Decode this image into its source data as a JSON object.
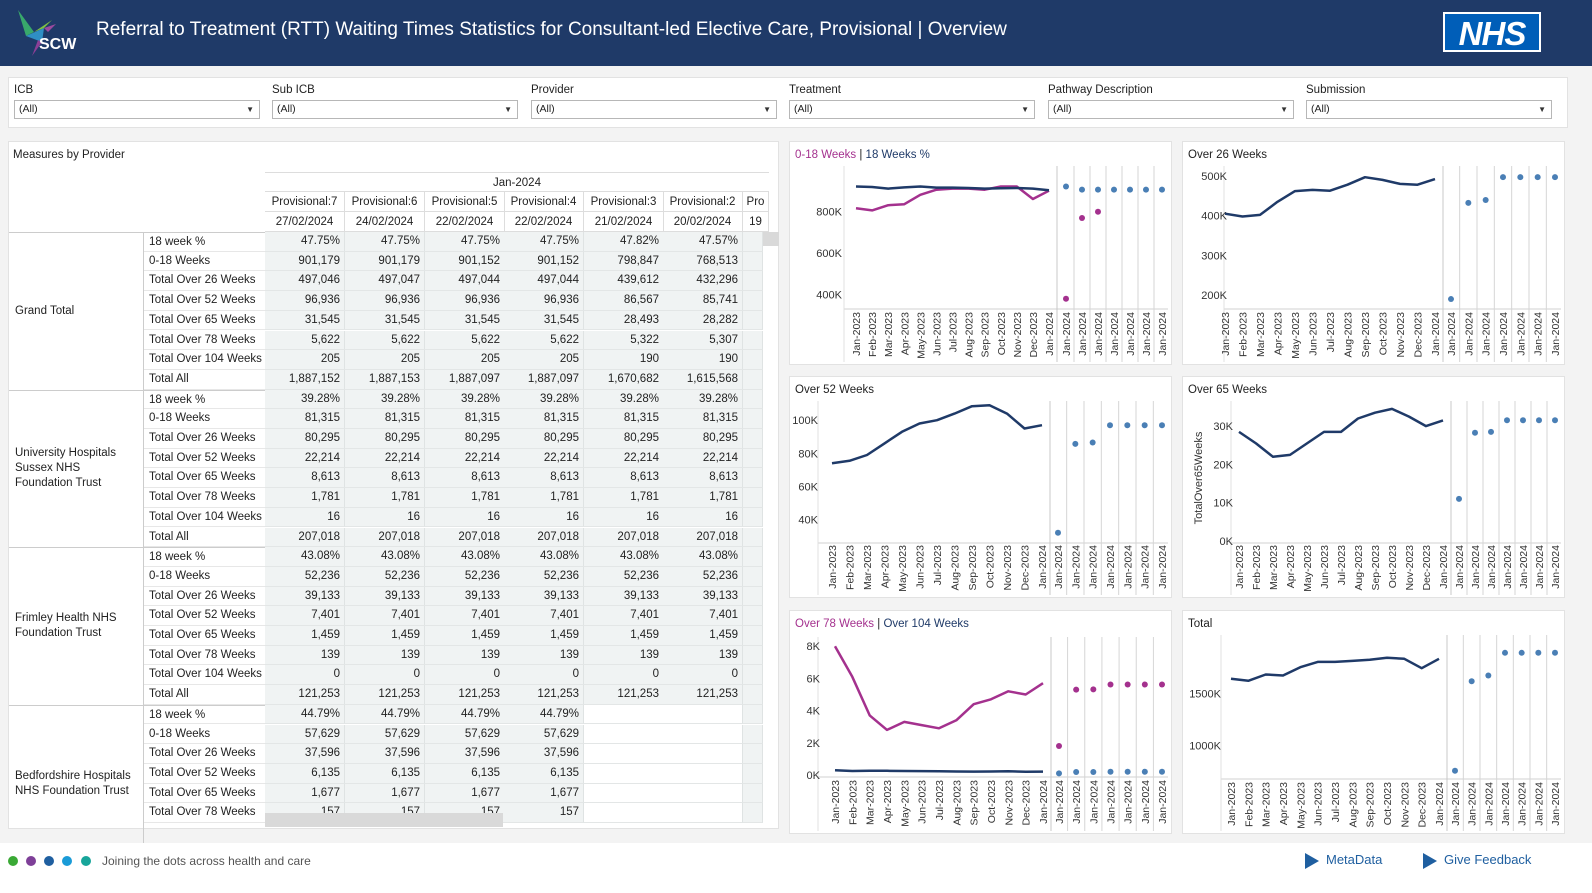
{
  "header": {
    "logo_text": "SCW",
    "title": "Referral to Treatment (RTT) Waiting Times Statistics for Consultant-led Elective Care, Provisional | Overview",
    "nhs_logo": "NHS"
  },
  "filters": [
    {
      "label": "ICB",
      "value": "(All)"
    },
    {
      "label": "Sub ICB",
      "value": "(All)"
    },
    {
      "label": "Provider",
      "value": "(All)"
    },
    {
      "label": "Treatment",
      "value": "(All)"
    },
    {
      "label": "Pathway Description",
      "value": "(All)"
    },
    {
      "label": "Submission",
      "value": "(All)"
    }
  ],
  "table": {
    "title": "Measures by Provider",
    "month": "Jan-2024",
    "columns": [
      {
        "name": "Provisional:7",
        "date": "27/02/2024"
      },
      {
        "name": "Provisional:6",
        "date": "24/02/2024"
      },
      {
        "name": "Provisional:5",
        "date": "22/02/2024"
      },
      {
        "name": "Provisional:4",
        "date": "22/02/2024"
      },
      {
        "name": "Provisional:3",
        "date": "21/02/2024"
      },
      {
        "name": "Provisional:2",
        "date": "20/02/2024"
      },
      {
        "name": "Pro",
        "date": "19"
      }
    ],
    "groups": [
      {
        "name": "Grand Total",
        "rows": [
          {
            "measure": "18 week %",
            "values": [
              "47.75%",
              "47.75%",
              "47.75%",
              "47.75%",
              "47.82%",
              "47.57%"
            ]
          },
          {
            "measure": "0-18 Weeks",
            "values": [
              "901,179",
              "901,179",
              "901,152",
              "901,152",
              "798,847",
              "768,513"
            ]
          },
          {
            "measure": "Total Over 26 Weeks",
            "values": [
              "497,046",
              "497,047",
              "497,044",
              "497,044",
              "439,612",
              "432,296"
            ]
          },
          {
            "measure": "Total Over 52 Weeks",
            "values": [
              "96,936",
              "96,936",
              "96,936",
              "96,936",
              "86,567",
              "85,741"
            ]
          },
          {
            "measure": "Total Over 65 Weeks",
            "values": [
              "31,545",
              "31,545",
              "31,545",
              "31,545",
              "28,493",
              "28,282"
            ]
          },
          {
            "measure": "Total Over 78 Weeks",
            "values": [
              "5,622",
              "5,622",
              "5,622",
              "5,622",
              "5,322",
              "5,307"
            ]
          },
          {
            "measure": "Total Over 104 Weeks",
            "values": [
              "205",
              "205",
              "205",
              "205",
              "190",
              "190"
            ]
          },
          {
            "measure": "Total All",
            "values": [
              "1,887,152",
              "1,887,153",
              "1,887,097",
              "1,887,097",
              "1,670,682",
              "1,615,568"
            ]
          }
        ]
      },
      {
        "name": "University Hospitals Sussex NHS Foundation Trust",
        "rows": [
          {
            "measure": "18 week %",
            "values": [
              "39.28%",
              "39.28%",
              "39.28%",
              "39.28%",
              "39.28%",
              "39.28%"
            ]
          },
          {
            "measure": "0-18 Weeks",
            "values": [
              "81,315",
              "81,315",
              "81,315",
              "81,315",
              "81,315",
              "81,315"
            ]
          },
          {
            "measure": "Total Over 26 Weeks",
            "values": [
              "80,295",
              "80,295",
              "80,295",
              "80,295",
              "80,295",
              "80,295"
            ]
          },
          {
            "measure": "Total Over 52 Weeks",
            "values": [
              "22,214",
              "22,214",
              "22,214",
              "22,214",
              "22,214",
              "22,214"
            ]
          },
          {
            "measure": "Total Over 65 Weeks",
            "values": [
              "8,613",
              "8,613",
              "8,613",
              "8,613",
              "8,613",
              "8,613"
            ]
          },
          {
            "measure": "Total Over 78 Weeks",
            "values": [
              "1,781",
              "1,781",
              "1,781",
              "1,781",
              "1,781",
              "1,781"
            ]
          },
          {
            "measure": "Total Over 104 Weeks",
            "values": [
              "16",
              "16",
              "16",
              "16",
              "16",
              "16"
            ]
          },
          {
            "measure": "Total All",
            "values": [
              "207,018",
              "207,018",
              "207,018",
              "207,018",
              "207,018",
              "207,018"
            ]
          }
        ]
      },
      {
        "name": "Frimley Health NHS Foundation Trust",
        "rows": [
          {
            "measure": "18 week %",
            "values": [
              "43.08%",
              "43.08%",
              "43.08%",
              "43.08%",
              "43.08%",
              "43.08%"
            ]
          },
          {
            "measure": "0-18 Weeks",
            "values": [
              "52,236",
              "52,236",
              "52,236",
              "52,236",
              "52,236",
              "52,236"
            ]
          },
          {
            "measure": "Total Over 26 Weeks",
            "values": [
              "39,133",
              "39,133",
              "39,133",
              "39,133",
              "39,133",
              "39,133"
            ]
          },
          {
            "measure": "Total Over 52 Weeks",
            "values": [
              "7,401",
              "7,401",
              "7,401",
              "7,401",
              "7,401",
              "7,401"
            ]
          },
          {
            "measure": "Total Over 65 Weeks",
            "values": [
              "1,459",
              "1,459",
              "1,459",
              "1,459",
              "1,459",
              "1,459"
            ]
          },
          {
            "measure": "Total Over 78 Weeks",
            "values": [
              "139",
              "139",
              "139",
              "139",
              "139",
              "139"
            ]
          },
          {
            "measure": "Total Over 104 Weeks",
            "values": [
              "0",
              "0",
              "0",
              "0",
              "0",
              "0"
            ]
          },
          {
            "measure": "Total All",
            "values": [
              "121,253",
              "121,253",
              "121,253",
              "121,253",
              "121,253",
              "121,253"
            ]
          }
        ]
      },
      {
        "name": "Bedfordshire Hospitals NHS Foundation Trust",
        "rows": [
          {
            "measure": "18 week %",
            "values": [
              "44.79%",
              "44.79%",
              "44.79%",
              "44.79%",
              "",
              ""
            ]
          },
          {
            "measure": "0-18 Weeks",
            "values": [
              "57,629",
              "57,629",
              "57,629",
              "57,629",
              "",
              ""
            ]
          },
          {
            "measure": "Total Over 26 Weeks",
            "values": [
              "37,596",
              "37,596",
              "37,596",
              "37,596",
              "",
              ""
            ]
          },
          {
            "measure": "Total Over 52 Weeks",
            "values": [
              "6,135",
              "6,135",
              "6,135",
              "6,135",
              "",
              ""
            ]
          },
          {
            "measure": "Total Over 65 Weeks",
            "values": [
              "1,677",
              "1,677",
              "1,677",
              "1,677",
              "",
              ""
            ]
          },
          {
            "measure": "Total Over 78 Weeks",
            "values": [
              "157",
              "157",
              "157",
              "157",
              "",
              ""
            ]
          }
        ]
      }
    ]
  },
  "colors": {
    "navy": "#1f3a68",
    "purple": "#a4318e",
    "dot_blue": "#4a7fb5"
  },
  "chart_data": [
    {
      "type": "line",
      "title_parts": [
        "0-18 Weeks",
        "18 Weeks %"
      ],
      "x": [
        "Jan-2023",
        "Feb-2023",
        "Mar-2023",
        "Apr-2023",
        "May-2023",
        "Jun-2023",
        "Jul-2023",
        "Aug-2023",
        "Sep-2023",
        "Oct-2023",
        "Nov-2023",
        "Dec-2023",
        "Jan-2024"
      ],
      "ylim": [
        340000,
        990000
      ],
      "yticks": [
        400000,
        600000,
        800000
      ],
      "ytick_labels": [
        "400K",
        "600K",
        "800K"
      ],
      "series": [
        {
          "name": "0-18 Weeks",
          "color": "#a4318e",
          "values": [
            815000,
            805000,
            830000,
            835000,
            880000,
            905000,
            910000,
            910000,
            905000,
            920000,
            920000,
            860000,
            900000
          ]
        },
        {
          "name": "18 Weeks %",
          "color": "#1f3a68",
          "values": [
            920000,
            918000,
            910000,
            916000,
            920000,
            915000,
            915000,
            913000,
            910000,
            912000,
            913000,
            910000,
            902000
          ]
        }
      ],
      "provisional_x": [
        "Jan-2024",
        "Jan-2024",
        "Jan-2024",
        "Jan-2024",
        "Jan-2024",
        "Jan-2024",
        "Jan-2024"
      ],
      "provisional_series": [
        {
          "name": "0-18 Weeks",
          "color": "#a4318e",
          "values": [
            380000,
            768513,
            798847,
            null,
            null,
            null,
            null
          ]
        },
        {
          "name": "18 Weeks %",
          "color": "#4a7fb5",
          "values": [
            920000,
            905000,
            905000,
            905000,
            905000,
            905000,
            905000
          ]
        }
      ]
    },
    {
      "type": "line",
      "title_parts": [
        "Over 26 Weeks"
      ],
      "x": [
        "Jan-2023",
        "Feb-2023",
        "Mar-2023",
        "Apr-2023",
        "May-2023",
        "Jun-2023",
        "Jul-2023",
        "Aug-2023",
        "Sep-2023",
        "Oct-2023",
        "Nov-2023",
        "Dec-2023",
        "Jan-2024"
      ],
      "ylim": [
        170000,
        510000
      ],
      "yticks": [
        200000,
        300000,
        400000,
        500000
      ],
      "ytick_labels": [
        "200K",
        "300K",
        "400K",
        "500K"
      ],
      "series": [
        {
          "name": "",
          "color": "#1f3a68",
          "values": [
            405000,
            398000,
            402000,
            435000,
            462000,
            465000,
            463000,
            478000,
            497000,
            490000,
            480000,
            478000,
            492000
          ]
        }
      ],
      "provisional_x": [
        "Jan-2024",
        "Jan-2024",
        "Jan-2024",
        "Jan-2024",
        "Jan-2024",
        "Jan-2024",
        "Jan-2024"
      ],
      "provisional_series": [
        {
          "name": "",
          "color": "#4a7fb5",
          "values": [
            190000,
            432296,
            439612,
            497044,
            497044,
            497047,
            497046
          ]
        }
      ]
    },
    {
      "type": "line",
      "title_parts": [
        "Over 52 Weeks"
      ],
      "x": [
        "Jan-2023",
        "Feb-2023",
        "Mar-2023",
        "Apr-2023",
        "May-2023",
        "Jun-2023",
        "Jul-2023",
        "Aug-2023",
        "Sep-2023",
        "Oct-2023",
        "Nov-2023",
        "Dec-2023",
        "Jan-2024"
      ],
      "ylim": [
        27000,
        108000
      ],
      "yticks": [
        40000,
        60000,
        80000,
        100000
      ],
      "ytick_labels": [
        "40K",
        "60K",
        "80K",
        "100K"
      ],
      "series": [
        {
          "name": "",
          "color": "#1f3a68",
          "values": [
            74000,
            75500,
            79000,
            86000,
            93000,
            98000,
            100000,
            104000,
            108500,
            109000,
            104000,
            95000,
            97000
          ]
        }
      ],
      "provisional_x": [
        "Jan-2024",
        "Jan-2024",
        "Jan-2024",
        "Jan-2024",
        "Jan-2024",
        "Jan-2024",
        "Jan-2024"
      ],
      "provisional_series": [
        {
          "name": "",
          "color": "#4a7fb5",
          "values": [
            32000,
            85741,
            86567,
            96936,
            96936,
            96936,
            96936
          ]
        }
      ]
    },
    {
      "type": "line",
      "title_parts": [
        "Over 65 Weeks"
      ],
      "ylabel": "TotalOver65Weeks",
      "x": [
        "Jan-2023",
        "Feb-2023",
        "Mar-2023",
        "Apr-2023",
        "May-2023",
        "Jun-2023",
        "Jul-2023",
        "Aug-2023",
        "Sep-2023",
        "Oct-2023",
        "Nov-2023",
        "Dec-2023",
        "Jan-2024"
      ],
      "ylim": [
        0,
        35000
      ],
      "yticks": [
        0,
        10000,
        20000,
        30000
      ],
      "ytick_labels": [
        "0K",
        "10K",
        "20K",
        "30K"
      ],
      "series": [
        {
          "name": "",
          "color": "#1f3a68",
          "values": [
            28500,
            25500,
            22000,
            22500,
            25500,
            28500,
            28500,
            32000,
            33500,
            34500,
            32500,
            30000,
            31500
          ]
        }
      ],
      "provisional_x": [
        "Jan-2024",
        "Jan-2024",
        "Jan-2024",
        "Jan-2024",
        "Jan-2024",
        "Jan-2024",
        "Jan-2024"
      ],
      "provisional_series": [
        {
          "name": "",
          "color": "#4a7fb5",
          "values": [
            11000,
            28282,
            28493,
            31545,
            31545,
            31545,
            31545
          ]
        }
      ]
    },
    {
      "type": "line",
      "title_parts": [
        "Over 78 Weeks",
        "Over 104 Weeks"
      ],
      "x": [
        "Jan-2023",
        "Feb-2023",
        "Mar-2023",
        "Apr-2023",
        "May-2023",
        "Jun-2023",
        "Jul-2023",
        "Aug-2023",
        "Sep-2023",
        "Oct-2023",
        "Nov-2023",
        "Dec-2023",
        "Jan-2024"
      ],
      "ylim": [
        0,
        8200
      ],
      "yticks": [
        0,
        2000,
        4000,
        6000,
        8000
      ],
      "ytick_labels": [
        "0K",
        "2K",
        "4K",
        "6K",
        "8K"
      ],
      "series": [
        {
          "name": "Over 78 Weeks",
          "color": "#a4318e",
          "values": [
            8000,
            6100,
            3700,
            2800,
            3300,
            3100,
            2900,
            3400,
            4400,
            4700,
            5200,
            5000,
            5700
          ]
        },
        {
          "name": "Over 104 Weeks",
          "color": "#1f3a68",
          "values": [
            300,
            250,
            270,
            260,
            250,
            240,
            230,
            220,
            210,
            220,
            230,
            200,
            210
          ]
        }
      ],
      "provisional_x": [
        "Jan-2024",
        "Jan-2024",
        "Jan-2024",
        "Jan-2024",
        "Jan-2024",
        "Jan-2024",
        "Jan-2024"
      ],
      "provisional_series": [
        {
          "name": "Over 78 Weeks",
          "color": "#a4318e",
          "values": [
            1800,
            5307,
            5322,
            5622,
            5622,
            5622,
            5622
          ]
        },
        {
          "name": "Over 104 Weeks",
          "color": "#4a7fb5",
          "values": [
            100,
            190,
            190,
            205,
            205,
            205,
            205
          ]
        }
      ]
    },
    {
      "type": "line",
      "title_parts": [
        "Total"
      ],
      "x": [
        "Jan-2023",
        "Feb-2023",
        "Mar-2023",
        "Apr-2023",
        "May-2023",
        "Jun-2023",
        "Jul-2023",
        "Aug-2023",
        "Sep-2023",
        "Oct-2023",
        "Nov-2023",
        "Dec-2023",
        "Jan-2024"
      ],
      "ylim": [
        700000,
        2000000
      ],
      "yticks": [
        1000000,
        1500000
      ],
      "ytick_labels": [
        "1000K",
        "1500K"
      ],
      "series": [
        {
          "name": "",
          "color": "#1f3a68",
          "values": [
            1640000,
            1620000,
            1680000,
            1670000,
            1750000,
            1800000,
            1800000,
            1810000,
            1820000,
            1840000,
            1830000,
            1740000,
            1830000
          ]
        }
      ],
      "provisional_x": [
        "Jan-2024",
        "Jan-2024",
        "Jan-2024",
        "Jan-2024",
        "Jan-2024",
        "Jan-2024",
        "Jan-2024"
      ],
      "provisional_series": [
        {
          "name": "",
          "color": "#4a7fb5",
          "values": [
            760000,
            1615568,
            1670682,
            1887097,
            1887097,
            1887153,
            1887152
          ]
        }
      ]
    }
  ],
  "footer": {
    "tagline": "Joining the dots across health and care",
    "dot_colors": [
      "#3aa935",
      "#7e3f98",
      "#1f5fa0",
      "#1a9bd7",
      "#17a59a"
    ],
    "links": [
      {
        "label": "MetaData"
      },
      {
        "label": "Give Feedback"
      }
    ]
  }
}
